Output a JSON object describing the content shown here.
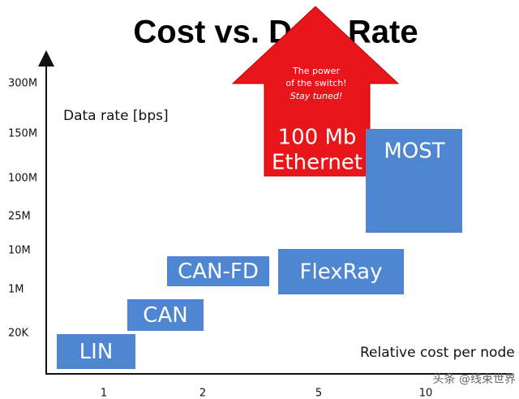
{
  "title": "Cost vs. Data Rate",
  "y_axis": {
    "label": "Data rate [bps]",
    "ticks": [
      "300M",
      "150M",
      "100M",
      "25M",
      "10M",
      "1M",
      "20K"
    ]
  },
  "x_axis": {
    "label": "Relative cost per node",
    "ticks": [
      "1",
      "2",
      "5",
      "10"
    ]
  },
  "boxes": [
    {
      "label": "LIN"
    },
    {
      "label": "CAN"
    },
    {
      "label": "CAN-FD"
    },
    {
      "label": "FlexRay"
    },
    {
      "label": "MOST"
    }
  ],
  "arrow": {
    "lines": [
      "The power",
      "of the switch!",
      "Stay tuned!"
    ],
    "label_lines": [
      "100 Mb",
      "Ethernet"
    ]
  },
  "watermark": "头条 @线束世界"
}
